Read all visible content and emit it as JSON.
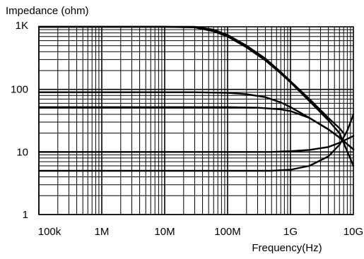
{
  "chart_data": {
    "type": "line",
    "title": "",
    "ylabel": "Impedance (ohm)",
    "xlabel": "Frequency(Hz)",
    "x_scale": "log",
    "y_scale": "log",
    "xlim": [
      100000,
      10000000000
    ],
    "ylim": [
      1,
      1000
    ],
    "grid": true,
    "x_ticks": [
      {
        "value": 100000,
        "label": "100k"
      },
      {
        "value": 1000000,
        "label": "1M"
      },
      {
        "value": 10000000,
        "label": "10M"
      },
      {
        "value": 100000000,
        "label": "100M"
      },
      {
        "value": 1000000000,
        "label": "1G"
      },
      {
        "value": 10000000000,
        "label": "10G"
      }
    ],
    "y_ticks": [
      {
        "value": 1,
        "label": "1"
      },
      {
        "value": 10,
        "label": "10"
      },
      {
        "value": 100,
        "label": "100"
      },
      {
        "value": 1000,
        "label": "1K"
      }
    ],
    "series": [
      {
        "points": [
          [
            100000,
            1000
          ],
          [
            10000000,
            1000
          ],
          [
            30000000,
            980
          ],
          [
            60000000,
            850
          ],
          [
            100000000,
            700
          ],
          [
            200000000,
            470
          ],
          [
            400000000,
            290
          ],
          [
            700000000,
            180
          ],
          [
            1000000000,
            130
          ],
          [
            2000000000,
            65
          ],
          [
            4000000000,
            32
          ],
          [
            6000000000,
            20
          ],
          [
            10000000000,
            6
          ]
        ]
      },
      {
        "points": [
          [
            100000,
            1000
          ],
          [
            30000000,
            1000
          ],
          [
            60000000,
            900
          ],
          [
            100000000,
            740
          ],
          [
            200000000,
            500
          ],
          [
            400000000,
            310
          ],
          [
            700000000,
            190
          ],
          [
            1000000000,
            135
          ],
          [
            2000000000,
            70
          ],
          [
            4000000000,
            35
          ],
          [
            6000000000,
            24
          ],
          [
            7000000000,
            20
          ]
        ]
      },
      {
        "points": [
          [
            100000,
            90
          ],
          [
            30000000,
            90
          ],
          [
            100000000,
            88
          ],
          [
            200000000,
            84
          ],
          [
            400000000,
            75
          ],
          [
            700000000,
            62
          ],
          [
            1000000000,
            52
          ],
          [
            2000000000,
            35
          ],
          [
            4000000000,
            23
          ],
          [
            6000000000,
            17
          ],
          [
            10000000000,
            11
          ]
        ]
      },
      {
        "points": [
          [
            100000,
            52
          ],
          [
            100000000,
            52
          ],
          [
            300000000,
            51
          ],
          [
            700000000,
            48
          ],
          [
            1000000000,
            45
          ],
          [
            2000000000,
            35
          ],
          [
            4000000000,
            23
          ],
          [
            6000000000,
            17
          ],
          [
            10000000000,
            11
          ]
        ]
      },
      {
        "points": [
          [
            100000,
            10
          ],
          [
            500000000,
            10
          ],
          [
            1000000000,
            10.3
          ],
          [
            2000000000,
            10.8
          ],
          [
            4000000000,
            12
          ],
          [
            6000000000,
            14
          ],
          [
            10000000000,
            18
          ]
        ]
      },
      {
        "points": [
          [
            100000,
            5
          ],
          [
            500000000,
            5
          ],
          [
            1000000000,
            5.2
          ],
          [
            2000000000,
            6
          ],
          [
            4000000000,
            8.5
          ],
          [
            6000000000,
            13
          ],
          [
            8000000000,
            22
          ],
          [
            10000000000,
            40
          ]
        ]
      }
    ]
  }
}
